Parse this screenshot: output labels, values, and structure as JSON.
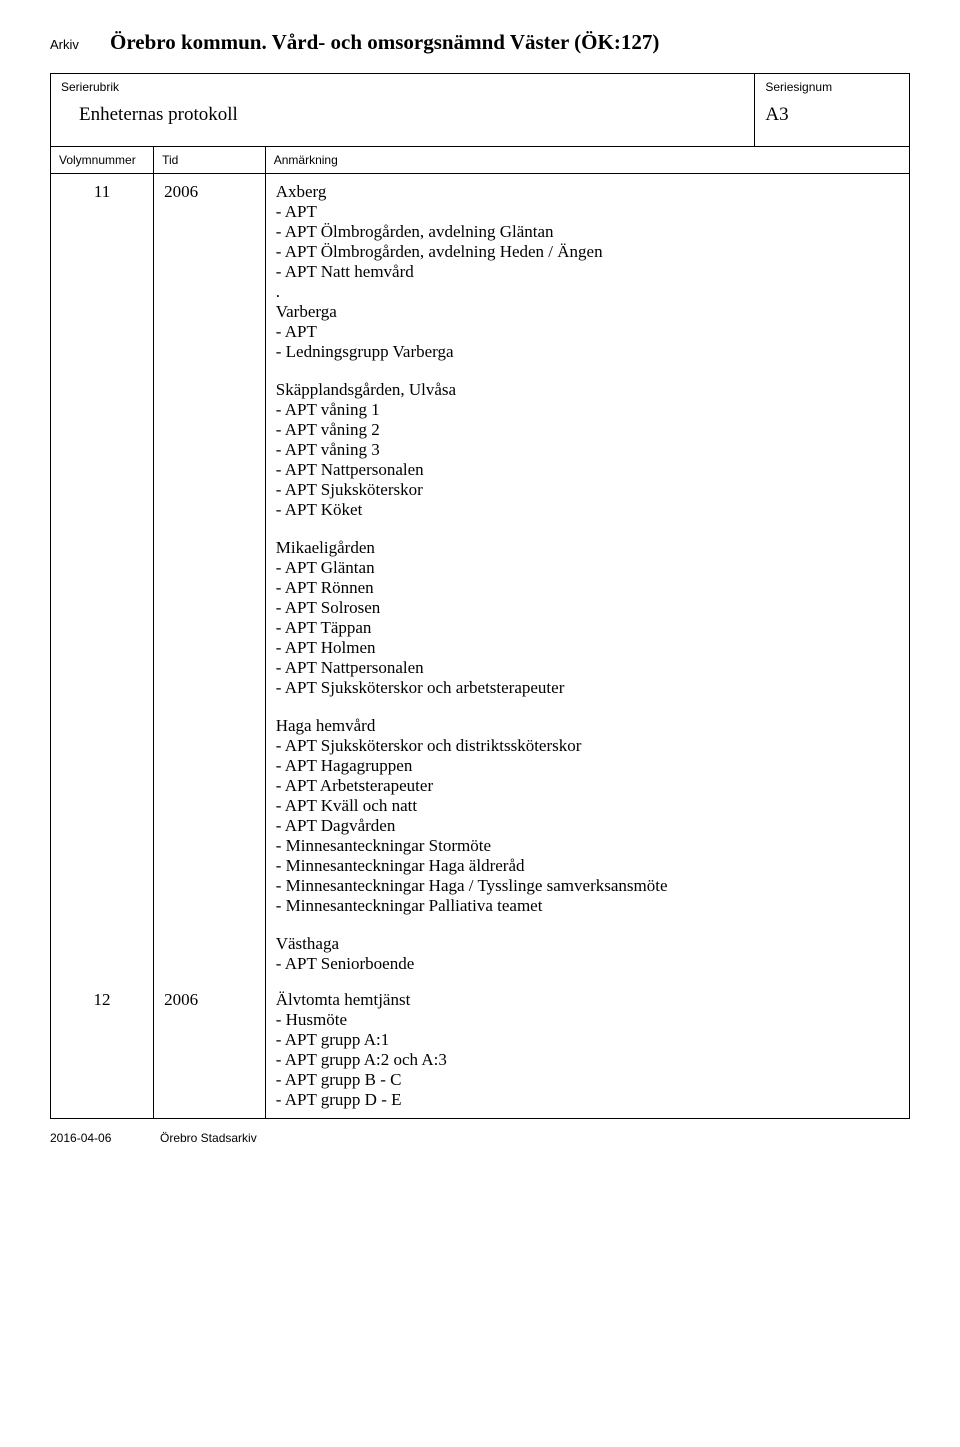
{
  "header": {
    "arkiv_label": "Arkiv",
    "arkiv_title": "Örebro kommun. Vård- och omsorgsnämnd Väster (ÖK:127)"
  },
  "meta": {
    "serierubrik_label": "Serierubrik",
    "serierubrik_value": "Enheternas protokoll",
    "seriesignum_label": "Seriesignum",
    "seriesignum_value": "A3"
  },
  "columns": {
    "volym": "Volymnummer",
    "tid": "Tid",
    "anm": "Anmärkning"
  },
  "rows": [
    {
      "volym": "11",
      "tid": "2006",
      "sections": [
        {
          "dot_after": true,
          "lines": [
            "Axberg",
            "- APT",
            "- APT Ölmbrogården, avdelning Gläntan",
            "- APT Ölmbrogården, avdelning Heden / Ängen",
            " - APT Natt hemvård"
          ]
        },
        {
          "lines": [
            "Varberga",
            "- APT",
            "- Ledningsgrupp Varberga"
          ]
        },
        {
          "lines": [
            "Skäpplandsgården, Ulvåsa",
            "- APT våning 1",
            "- APT våning 2",
            "- APT våning 3",
            "- APT Nattpersonalen",
            "- APT Sjuksköterskor",
            "- APT Köket"
          ]
        },
        {
          "lines": [
            "Mikaeligården",
            "- APT Gläntan",
            "- APT Rönnen",
            "- APT Solrosen",
            "- APT Täppan",
            "- APT Holmen",
            "- APT Nattpersonalen",
            "- APT Sjuksköterskor och arbetsterapeuter"
          ]
        },
        {
          "lines": [
            "Haga hemvård",
            "- APT Sjuksköterskor och distriktssköterskor",
            "- APT Hagagruppen",
            "- APT Arbetsterapeuter",
            "- APT Kväll och natt",
            "- APT Dagvården",
            "- Minnesanteckningar Stormöte",
            "- Minnesanteckningar Haga äldreråd",
            "- Minnesanteckningar Haga / Tysslinge samverksansmöte",
            "- Minnesanteckningar Palliativa teamet"
          ]
        },
        {
          "lines": [
            "Västhaga",
            "- APT Seniorboende"
          ]
        }
      ]
    },
    {
      "volym": "12",
      "tid": "2006",
      "sections": [
        {
          "lines": [
            "Älvtomta hemtjänst",
            "- Husmöte",
            "- APT grupp A:1",
            "- APT grupp A:2 och A:3",
            "- APT grupp B - C",
            "- APT grupp D - E"
          ]
        }
      ]
    }
  ],
  "footer": {
    "date": "2016-04-06",
    "org": "Örebro Stadsarkiv"
  },
  "colors": {
    "text": "#000000",
    "border": "#000000",
    "background": "#ffffff"
  }
}
